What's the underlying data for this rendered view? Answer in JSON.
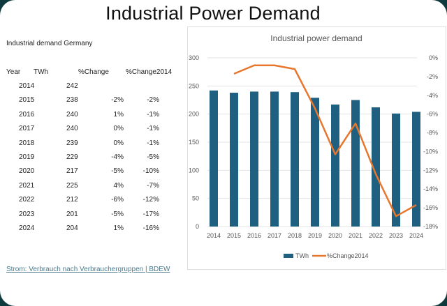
{
  "slide": {
    "title": "Industrial Power Demand",
    "subtitle": "Industrial demand Germany",
    "source_link": "Strom: Verbrauch nach Verbrauchergruppen | BDEW"
  },
  "table": {
    "headers": [
      "Year",
      "TWh",
      "%Change",
      "%Change2014"
    ],
    "rows": [
      [
        "2014",
        "242",
        "",
        ""
      ],
      [
        "2015",
        "238",
        "-2%",
        "-2%"
      ],
      [
        "2016",
        "240",
        "1%",
        "-1%"
      ],
      [
        "2017",
        "240",
        "0%",
        "-1%"
      ],
      [
        "2018",
        "239",
        "0%",
        "-1%"
      ],
      [
        "2019",
        "229",
        "-4%",
        "-5%"
      ],
      [
        "2020",
        "217",
        "-5%",
        "-10%"
      ],
      [
        "2021",
        "225",
        "4%",
        "-7%"
      ],
      [
        "2022",
        "212",
        "-6%",
        "-12%"
      ],
      [
        "2023",
        "201",
        "-5%",
        "-17%"
      ],
      [
        "2024",
        "204",
        "1%",
        "-16%"
      ]
    ]
  },
  "chart_data": {
    "type": "bar+line",
    "title": "Industrial power demand",
    "categories": [
      "2014",
      "2015",
      "2016",
      "2017",
      "2018",
      "2019",
      "2020",
      "2021",
      "2022",
      "2023",
      "2024"
    ],
    "series": [
      {
        "name": "TWh",
        "type": "bar",
        "axis": "left",
        "color": "#1f5f7f",
        "values": [
          242,
          238,
          240,
          240,
          239,
          229,
          217,
          225,
          212,
          201,
          204
        ]
      },
      {
        "name": "%Change2014",
        "type": "line",
        "axis": "right",
        "color": "#e8772e",
        "values": [
          null,
          -1.7,
          -0.8,
          -0.8,
          -1.2,
          -5.4,
          -10.3,
          -7.0,
          -12.4,
          -16.9,
          -15.7
        ]
      }
    ],
    "y_left": {
      "range": [
        0,
        300
      ],
      "ticks": [
        "0",
        "50",
        "100",
        "150",
        "200",
        "250",
        "300"
      ]
    },
    "y_right": {
      "range": [
        -18,
        0
      ],
      "ticks": [
        "0%",
        "-2%",
        "-4%",
        "-6%",
        "-8%",
        "-10%",
        "-12%",
        "-14%",
        "-16%",
        "-18%"
      ]
    },
    "grid": true,
    "legend": "bottom"
  }
}
